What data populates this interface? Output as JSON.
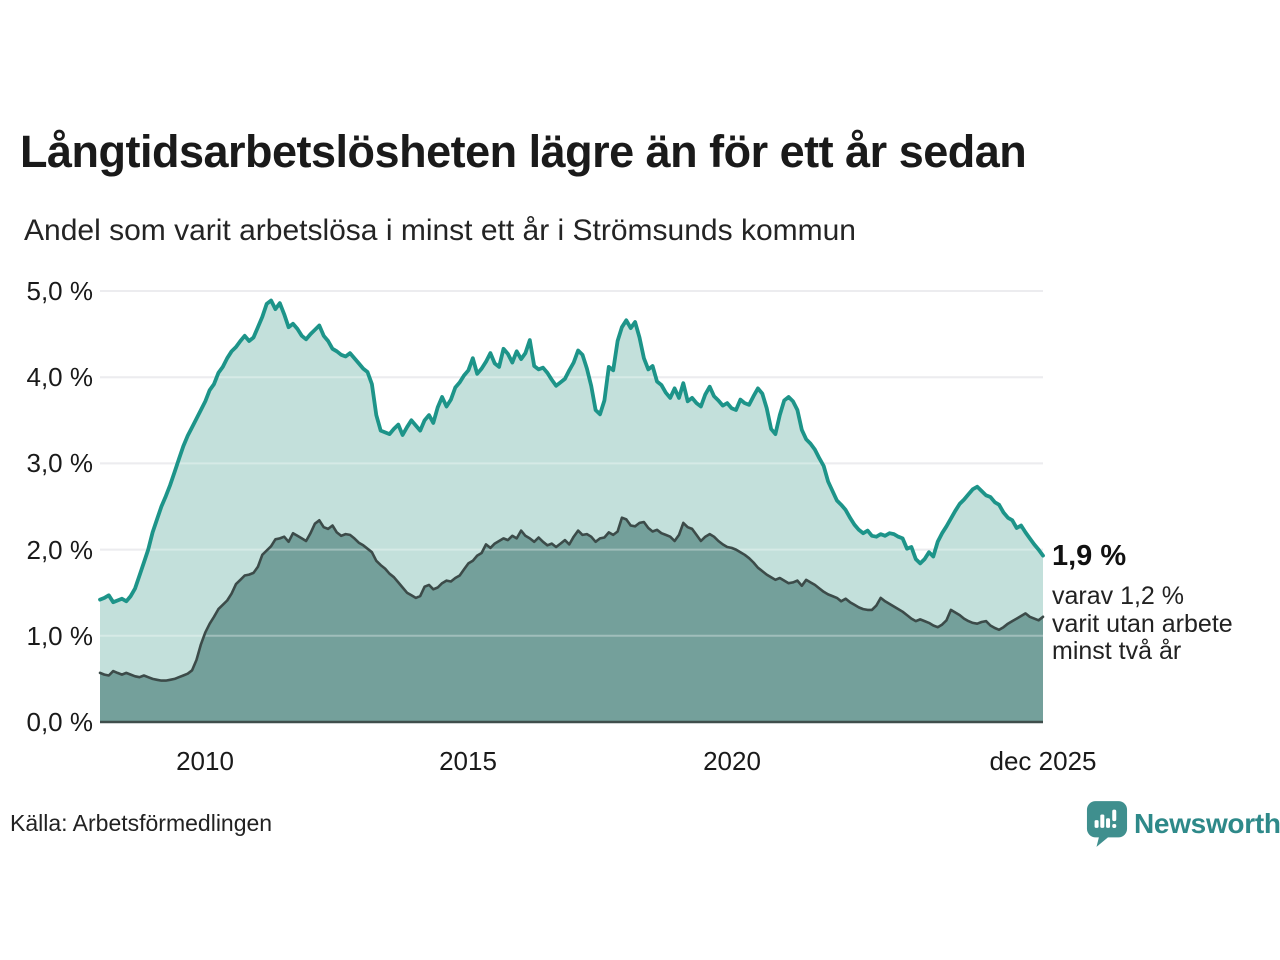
{
  "chart_data": {
    "type": "area",
    "title": "Långtidsarbetslösheten lägre än för ett år sedan",
    "subtitle": "Andel som varit arbetslösa i minst ett år i Strömsunds kommun",
    "x_axis": {
      "range_years": [
        2008.0,
        2025.9167
      ],
      "tick_labels": [
        "2010",
        "2015",
        "2020",
        "dec 2025"
      ],
      "tick_positions_years": [
        2010,
        2015,
        2020,
        2025.9167
      ]
    },
    "y_axis": {
      "unit": "%",
      "range": [
        0,
        5
      ],
      "tick_labels": [
        "5,0 %",
        "4,0 %",
        "3,0 %",
        "2,0 %",
        "1,0 %",
        "0,0 %"
      ],
      "tick_values": [
        5,
        4,
        3,
        2,
        1,
        0
      ],
      "gridlines": true
    },
    "x_start_year": 2008,
    "points_per_year": 12,
    "grid_color": "#e3e3e8",
    "axis_line_color": "#3f4e4c",
    "series": [
      {
        "name": "arbetslösa minst ett år",
        "line_color": "#1d9489",
        "fill_color": "#c3e0db",
        "end_value_label": "1,9 %",
        "values": [
          1.42,
          1.44,
          1.47,
          1.39,
          1.41,
          1.43,
          1.4,
          1.46,
          1.55,
          1.7,
          1.85,
          2.0,
          2.2,
          2.35,
          2.5,
          2.62,
          2.75,
          2.9,
          3.05,
          3.2,
          3.32,
          3.42,
          3.52,
          3.62,
          3.72,
          3.85,
          3.92,
          4.05,
          4.12,
          4.22,
          4.3,
          4.35,
          4.42,
          4.48,
          4.42,
          4.46,
          4.58,
          4.7,
          4.85,
          4.89,
          4.79,
          4.86,
          4.73,
          4.58,
          4.62,
          4.56,
          4.48,
          4.44,
          4.5,
          4.55,
          4.6,
          4.48,
          4.42,
          4.33,
          4.3,
          4.26,
          4.24,
          4.28,
          4.22,
          4.16,
          4.1,
          4.06,
          3.92,
          3.56,
          3.38,
          3.36,
          3.34,
          3.4,
          3.45,
          3.33,
          3.42,
          3.5,
          3.44,
          3.38,
          3.5,
          3.56,
          3.47,
          3.65,
          3.77,
          3.66,
          3.74,
          3.88,
          3.94,
          4.02,
          4.08,
          4.22,
          4.04,
          4.1,
          4.18,
          4.28,
          4.16,
          4.12,
          4.33,
          4.27,
          4.17,
          4.3,
          4.21,
          4.28,
          4.43,
          4.13,
          4.09,
          4.11,
          4.05,
          3.97,
          3.9,
          3.94,
          3.98,
          4.08,
          4.17,
          4.31,
          4.26,
          4.1,
          3.9,
          3.62,
          3.57,
          3.73,
          4.12,
          4.08,
          4.42,
          4.58,
          4.66,
          4.57,
          4.64,
          4.46,
          4.22,
          4.09,
          4.13,
          3.95,
          3.91,
          3.82,
          3.76,
          3.87,
          3.76,
          3.93,
          3.72,
          3.76,
          3.7,
          3.66,
          3.8,
          3.89,
          3.78,
          3.73,
          3.67,
          3.7,
          3.64,
          3.62,
          3.74,
          3.7,
          3.68,
          3.78,
          3.87,
          3.81,
          3.64,
          3.4,
          3.34,
          3.56,
          3.73,
          3.77,
          3.72,
          3.62,
          3.39,
          3.28,
          3.23,
          3.16,
          3.06,
          2.97,
          2.79,
          2.68,
          2.57,
          2.52,
          2.46,
          2.37,
          2.29,
          2.23,
          2.19,
          2.22,
          2.16,
          2.15,
          2.18,
          2.16,
          2.19,
          2.18,
          2.15,
          2.13,
          2.01,
          2.03,
          1.89,
          1.84,
          1.89,
          1.97,
          1.92,
          2.09,
          2.19,
          2.27,
          2.36,
          2.45,
          2.53,
          2.58,
          2.64,
          2.7,
          2.73,
          2.68,
          2.63,
          2.61,
          2.55,
          2.52,
          2.43,
          2.37,
          2.34,
          2.25,
          2.28,
          2.2,
          2.13,
          2.06,
          2.0,
          1.93
        ]
      },
      {
        "name": "utan arbete minst två år",
        "line_color": "#3c4b49",
        "fill_color": "#74a09b",
        "end_value_label": "1,2 %",
        "values": [
          0.57,
          0.55,
          0.54,
          0.59,
          0.57,
          0.55,
          0.57,
          0.55,
          0.53,
          0.52,
          0.54,
          0.52,
          0.5,
          0.49,
          0.48,
          0.48,
          0.49,
          0.5,
          0.52,
          0.54,
          0.56,
          0.6,
          0.72,
          0.9,
          1.04,
          1.14,
          1.22,
          1.31,
          1.36,
          1.41,
          1.49,
          1.6,
          1.65,
          1.7,
          1.71,
          1.73,
          1.8,
          1.94,
          1.99,
          2.04,
          2.12,
          2.13,
          2.15,
          2.09,
          2.19,
          2.16,
          2.13,
          2.1,
          2.19,
          2.3,
          2.34,
          2.26,
          2.24,
          2.28,
          2.2,
          2.16,
          2.18,
          2.17,
          2.13,
          2.08,
          2.05,
          2.01,
          1.97,
          1.87,
          1.82,
          1.78,
          1.72,
          1.68,
          1.62,
          1.56,
          1.5,
          1.47,
          1.44,
          1.46,
          1.57,
          1.59,
          1.54,
          1.56,
          1.61,
          1.64,
          1.63,
          1.67,
          1.7,
          1.77,
          1.84,
          1.87,
          1.93,
          1.96,
          2.06,
          2.02,
          2.07,
          2.1,
          2.13,
          2.11,
          2.16,
          2.13,
          2.22,
          2.16,
          2.13,
          2.09,
          2.14,
          2.09,
          2.05,
          2.07,
          2.03,
          2.07,
          2.11,
          2.06,
          2.15,
          2.22,
          2.17,
          2.18,
          2.15,
          2.09,
          2.13,
          2.14,
          2.2,
          2.17,
          2.21,
          2.37,
          2.35,
          2.28,
          2.27,
          2.31,
          2.32,
          2.25,
          2.21,
          2.23,
          2.19,
          2.17,
          2.15,
          2.1,
          2.17,
          2.31,
          2.26,
          2.24,
          2.17,
          2.1,
          2.15,
          2.18,
          2.15,
          2.1,
          2.06,
          2.03,
          2.02,
          2.0,
          1.97,
          1.94,
          1.9,
          1.85,
          1.79,
          1.75,
          1.71,
          1.68,
          1.65,
          1.67,
          1.64,
          1.61,
          1.62,
          1.64,
          1.58,
          1.65,
          1.62,
          1.59,
          1.55,
          1.51,
          1.48,
          1.46,
          1.44,
          1.4,
          1.43,
          1.39,
          1.36,
          1.33,
          1.31,
          1.3,
          1.3,
          1.35,
          1.44,
          1.4,
          1.37,
          1.34,
          1.31,
          1.28,
          1.24,
          1.2,
          1.17,
          1.19,
          1.17,
          1.15,
          1.12,
          1.1,
          1.13,
          1.18,
          1.3,
          1.27,
          1.24,
          1.2,
          1.17,
          1.15,
          1.14,
          1.16,
          1.17,
          1.12,
          1.09,
          1.07,
          1.1,
          1.14,
          1.17,
          1.2,
          1.23,
          1.26,
          1.22,
          1.2,
          1.18,
          1.22
        ]
      }
    ],
    "annotation": {
      "headline": "1,9 %",
      "lines": [
        "varav 1,2 %",
        "varit utan arbete",
        "minst två år"
      ]
    },
    "source": "Källa: Arbetsförmedlingen",
    "brand": "Newsworthy"
  }
}
